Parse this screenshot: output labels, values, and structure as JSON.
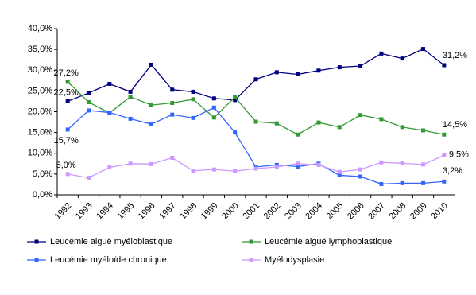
{
  "chart_data": {
    "type": "line",
    "categories": [
      "1992",
      "1993",
      "1994",
      "1995",
      "1996",
      "1997",
      "1998",
      "1999",
      "2000",
      "2001",
      "2002",
      "2003",
      "2004",
      "2005",
      "2006",
      "2007",
      "2008",
      "2009",
      "2010"
    ],
    "ylim": [
      0,
      40
    ],
    "yticks": [
      {
        "value": 0,
        "label": "0,0%"
      },
      {
        "value": 5,
        "label": "5,0%"
      },
      {
        "value": 10,
        "label": "10,0%"
      },
      {
        "value": 15,
        "label": "15,0%"
      },
      {
        "value": 20,
        "label": "20,0%"
      },
      {
        "value": 25,
        "label": "25,0%"
      },
      {
        "value": 30,
        "label": "30,0%"
      },
      {
        "value": 35,
        "label": "35,0%"
      },
      {
        "value": 40,
        "label": "40,0%"
      }
    ],
    "legend": "bottom",
    "series": [
      {
        "name": "Leucémie aiguë myéloblastique",
        "color": "#000080",
        "values": [
          22.5,
          24.5,
          26.7,
          24.8,
          31.3,
          25.3,
          24.8,
          23.2,
          22.8,
          27.8,
          29.5,
          29.0,
          29.9,
          30.7,
          31.0,
          34.0,
          32.8,
          35.1,
          31.2
        ],
        "value_labels": [
          "22,5%",
          null,
          null,
          null,
          null,
          null,
          null,
          null,
          null,
          null,
          null,
          null,
          null,
          null,
          null,
          null,
          null,
          null,
          "31,2%"
        ]
      },
      {
        "name": "Leucémie aiguë lymphoblastique",
        "color": "#339933",
        "values": [
          27.2,
          22.3,
          19.7,
          23.6,
          21.6,
          22.1,
          23.0,
          18.6,
          23.5,
          17.6,
          17.2,
          14.5,
          17.4,
          16.3,
          19.2,
          18.2,
          16.3,
          15.5,
          14.5
        ],
        "value_labels": [
          "27,2%",
          null,
          null,
          null,
          null,
          null,
          null,
          null,
          null,
          null,
          null,
          null,
          null,
          null,
          null,
          null,
          null,
          null,
          "14,5%"
        ]
      },
      {
        "name": "Leucémie myéloïde chronique",
        "color": "#3366ff",
        "values": [
          15.7,
          20.3,
          19.8,
          18.3,
          17.0,
          19.3,
          18.5,
          21.0,
          15.0,
          6.7,
          7.2,
          6.8,
          7.5,
          4.7,
          4.4,
          2.6,
          2.8,
          2.8,
          3.2
        ],
        "value_labels": [
          "15,7%",
          null,
          null,
          null,
          null,
          null,
          null,
          null,
          null,
          null,
          null,
          null,
          null,
          null,
          null,
          null,
          null,
          null,
          "3,2%"
        ]
      },
      {
        "name": "Myélodysplasie",
        "color": "#cc99ff",
        "values": [
          5.0,
          4.1,
          6.6,
          7.5,
          7.4,
          8.9,
          5.8,
          6.1,
          5.7,
          6.3,
          6.7,
          7.5,
          7.2,
          5.5,
          6.1,
          7.8,
          7.6,
          7.3,
          9.5
        ],
        "value_labels": [
          "5,0%",
          null,
          null,
          null,
          null,
          null,
          null,
          null,
          null,
          null,
          null,
          null,
          null,
          null,
          null,
          null,
          null,
          null,
          "9,5%"
        ]
      }
    ]
  }
}
